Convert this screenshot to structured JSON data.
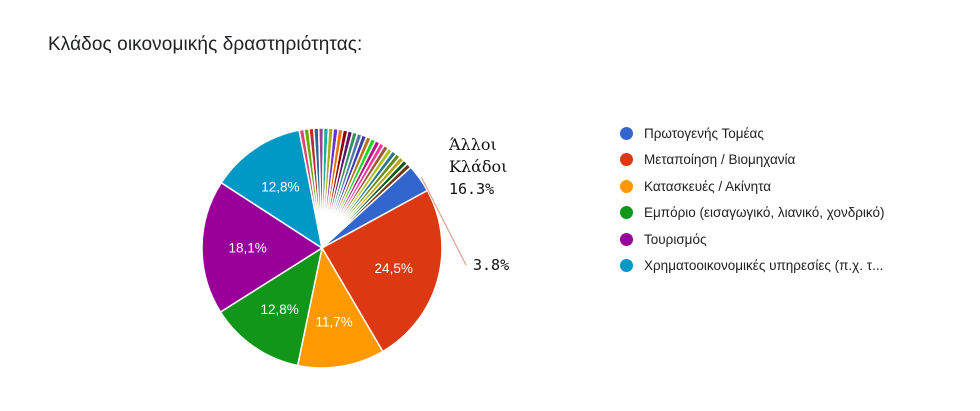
{
  "chart_data": {
    "type": "pie",
    "title": "Κλάδος οικονομικής δραστηριότητας:",
    "slices": [
      {
        "name": "Πρωτογενής Τομέας",
        "value": 3.8,
        "color": "#3366cc",
        "label": ""
      },
      {
        "name": "Μεταποίηση / Βιομηχανία",
        "value": 24.5,
        "color": "#dc3912",
        "label": "24,5%"
      },
      {
        "name": "Κατασκευές / Ακίνητα",
        "value": 11.7,
        "color": "#ff9900",
        "label": "11,7%"
      },
      {
        "name": "Εμπόριο (εισαγωγικό, λιανικό, χονδρικό)",
        "value": 12.8,
        "color": "#109618",
        "label": "12,8%"
      },
      {
        "name": "Τουρισμός",
        "value": 18.1,
        "color": "#990099",
        "label": "18,1%"
      },
      {
        "name": "Χρηματοοικονομικές υπηρεσίες (π.χ. τ...",
        "value": 12.8,
        "color": "#0099c6",
        "label": "12,8%"
      }
    ],
    "other": {
      "value": 16.3,
      "colors": [
        "#dd4477",
        "#66aa00",
        "#b82e2e",
        "#316395",
        "#994499",
        "#22aa99",
        "#aaaa11",
        "#6633cc",
        "#e67300",
        "#8b0707",
        "#651067",
        "#329262",
        "#5574a6",
        "#3b3eac",
        "#b77322",
        "#16d620",
        "#b91383",
        "#f4359e",
        "#9c5935",
        "#a9c413",
        "#2a778d",
        "#668d1c",
        "#bea413",
        "#0c5922",
        "#743411"
      ]
    },
    "legend_position": "right"
  },
  "annotations": {
    "other_name_line1": "Άλλοι",
    "other_name_line2": "Κλάδοι",
    "other_value": "16.3%",
    "primary_value": "3.8%"
  }
}
